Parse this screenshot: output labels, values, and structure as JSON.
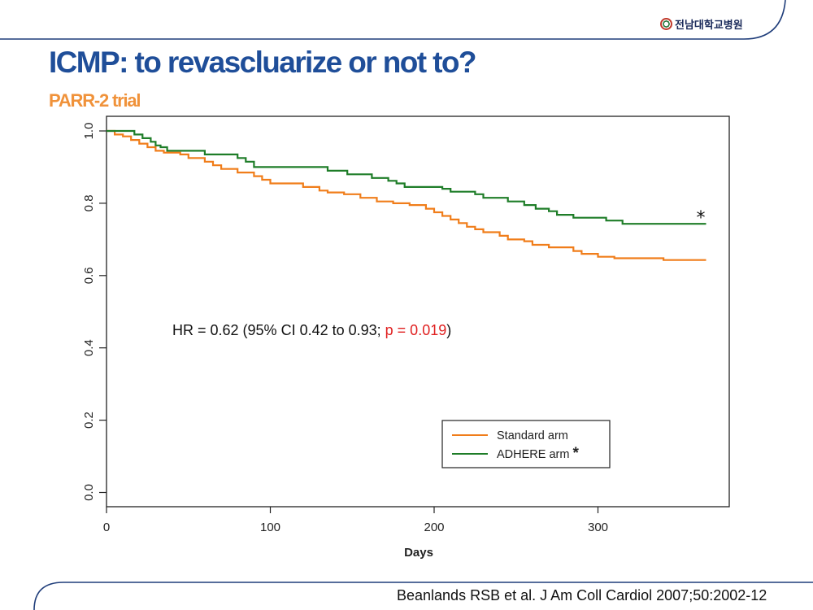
{
  "slide": {
    "logo_text": "전남대학교병원",
    "title": "ICMP: to revascluarize or not to?",
    "subtitle": "PARR-2 trial",
    "citation": "Beanlands RSB et al. J Am Coll Cardiol 2007;50:2002-12",
    "colors": {
      "title": "#1f4e99",
      "subtitle": "#f0923a",
      "frame": "#1f3d7a"
    }
  },
  "chart_data": {
    "type": "line",
    "step": true,
    "xlabel": "Days",
    "ylabel": "",
    "xlim": [
      0,
      380
    ],
    "ylim": [
      0.0,
      1.0
    ],
    "x_ticks": [
      "0",
      "100",
      "200",
      "300"
    ],
    "y_ticks": [
      "0.0",
      "0.2",
      "0.4",
      "0.6",
      "0.8",
      "1.0"
    ],
    "grid": false,
    "legend_position": "bottom-right",
    "annotation": {
      "prefix": "HR = 0.62 (95% CI 0.42 to 0.93; ",
      "pvalue": "p = 0.019",
      "suffix": ")",
      "pvalue_color": "#e02020"
    },
    "series_end_marker": "*",
    "series": [
      {
        "name": "Standard arm",
        "color": "#f07d1a",
        "points": [
          [
            0,
            1.0
          ],
          [
            5,
            0.99
          ],
          [
            10,
            0.985
          ],
          [
            15,
            0.975
          ],
          [
            20,
            0.965
          ],
          [
            25,
            0.955
          ],
          [
            30,
            0.945
          ],
          [
            35,
            0.94
          ],
          [
            45,
            0.935
          ],
          [
            50,
            0.925
          ],
          [
            60,
            0.915
          ],
          [
            65,
            0.905
          ],
          [
            70,
            0.895
          ],
          [
            80,
            0.885
          ],
          [
            90,
            0.875
          ],
          [
            95,
            0.865
          ],
          [
            100,
            0.855
          ],
          [
            120,
            0.845
          ],
          [
            130,
            0.835
          ],
          [
            135,
            0.83
          ],
          [
            145,
            0.825
          ],
          [
            155,
            0.815
          ],
          [
            165,
            0.805
          ],
          [
            175,
            0.8
          ],
          [
            185,
            0.795
          ],
          [
            195,
            0.785
          ],
          [
            200,
            0.775
          ],
          [
            205,
            0.765
          ],
          [
            210,
            0.755
          ],
          [
            215,
            0.745
          ],
          [
            220,
            0.735
          ],
          [
            225,
            0.728
          ],
          [
            230,
            0.72
          ],
          [
            240,
            0.71
          ],
          [
            245,
            0.7
          ],
          [
            255,
            0.695
          ],
          [
            260,
            0.685
          ],
          [
            270,
            0.678
          ],
          [
            285,
            0.668
          ],
          [
            290,
            0.66
          ],
          [
            300,
            0.652
          ],
          [
            310,
            0.648
          ],
          [
            340,
            0.643
          ],
          [
            366,
            0.643
          ]
        ]
      },
      {
        "name": "ADHERE arm",
        "name_marker": "*",
        "color": "#1e7d28",
        "points": [
          [
            0,
            1.0
          ],
          [
            17,
            0.99
          ],
          [
            22,
            0.98
          ],
          [
            27,
            0.97
          ],
          [
            30,
            0.96
          ],
          [
            33,
            0.955
          ],
          [
            37,
            0.945
          ],
          [
            60,
            0.935
          ],
          [
            80,
            0.925
          ],
          [
            85,
            0.915
          ],
          [
            90,
            0.9
          ],
          [
            135,
            0.89
          ],
          [
            147,
            0.88
          ],
          [
            162,
            0.87
          ],
          [
            172,
            0.862
          ],
          [
            177,
            0.855
          ],
          [
            182,
            0.845
          ],
          [
            205,
            0.84
          ],
          [
            210,
            0.832
          ],
          [
            225,
            0.825
          ],
          [
            230,
            0.815
          ],
          [
            245,
            0.805
          ],
          [
            255,
            0.795
          ],
          [
            262,
            0.785
          ],
          [
            270,
            0.778
          ],
          [
            275,
            0.768
          ],
          [
            285,
            0.76
          ],
          [
            305,
            0.752
          ],
          [
            315,
            0.743
          ],
          [
            366,
            0.743
          ]
        ]
      }
    ]
  }
}
